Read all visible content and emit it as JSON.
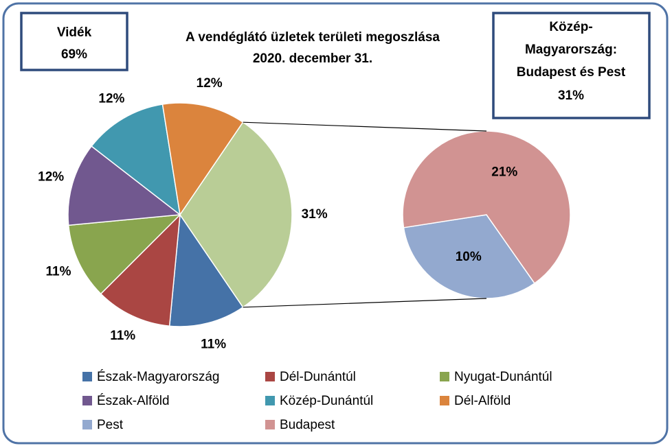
{
  "chart_data": {
    "type": "pie-of-pie",
    "title": "A vendéglátó üzletek területi megoszlása",
    "subtitle": "2020. december 31.",
    "annotations": [
      [
        "Vidék",
        "69%"
      ],
      [
        "Közép-",
        "Magyarország:",
        "Budapest és Pest",
        "31%"
      ]
    ],
    "categories": [
      "Észak-Magyarország",
      "Dél-Dunántúl",
      "Nyugat-Dunántúl",
      "Észak-Alföld",
      "Közép-Dunántúl",
      "Dél-Alföld",
      null
    ],
    "values": [
      11,
      11,
      11,
      12,
      12,
      12,
      31
    ],
    "value_labels": [
      "11%",
      "11%",
      "11%",
      "12%",
      "12%",
      "12%",
      "31%"
    ],
    "colors": [
      "#4572a7",
      "#aa4643",
      "#89a54e",
      "#71588f",
      "#4198af",
      "#db843d",
      "#b9cd96"
    ],
    "secondary": {
      "categories": [
        "Pest",
        "Budapest"
      ],
      "values": [
        10,
        21
      ],
      "value_labels": [
        "10%",
        "21%"
      ],
      "colors": [
        "#93a9cf",
        "#d19392"
      ]
    },
    "legend": "bottom"
  }
}
